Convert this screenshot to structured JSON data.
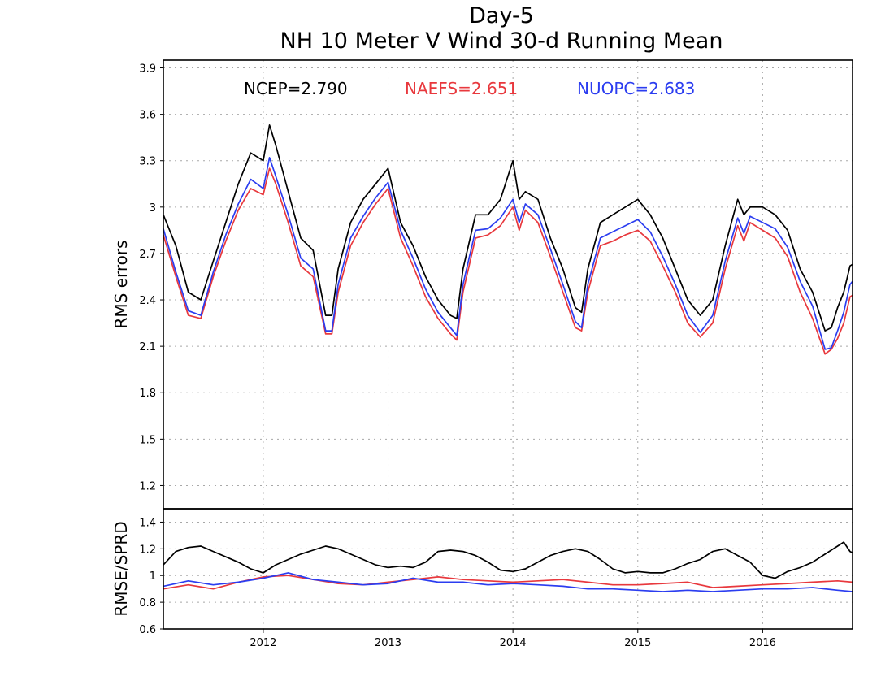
{
  "chart_data": [
    {
      "type": "line",
      "title": "Day-5",
      "subtitle": "NH 10 Meter V Wind 30-d Running Mean",
      "ylabel": "RMS errors",
      "xlabel": "",
      "xlim": [
        2011.2,
        2016.72
      ],
      "ylim": [
        1.05,
        3.95
      ],
      "yticks": [
        "1.2",
        "1.5",
        "1.8",
        "2.1",
        "2.4",
        "2.7",
        "3",
        "3.3",
        "3.6",
        "3.9"
      ],
      "grid": true,
      "legend_position": "top",
      "legend_entries": [
        {
          "label": "NCEP=2.790",
          "color": "#000000"
        },
        {
          "label": "NAEFS=2.651",
          "color": "#e8383d"
        },
        {
          "label": "NUOPC=2.683",
          "color": "#2b3df0"
        }
      ],
      "series": [
        {
          "name": "NCEP",
          "color": "#000000",
          "x": [
            2011.2,
            2011.3,
            2011.4,
            2011.5,
            2011.6,
            2011.7,
            2011.8,
            2011.9,
            2012.0,
            2012.05,
            2012.1,
            2012.2,
            2012.3,
            2012.4,
            2012.5,
            2012.55,
            2012.6,
            2012.7,
            2012.8,
            2012.9,
            2013.0,
            2013.1,
            2013.2,
            2013.3,
            2013.4,
            2013.5,
            2013.55,
            2013.6,
            2013.7,
            2013.8,
            2013.9,
            2014.0,
            2014.05,
            2014.1,
            2014.2,
            2014.3,
            2014.4,
            2014.5,
            2014.55,
            2014.6,
            2014.7,
            2014.8,
            2014.9,
            2015.0,
            2015.1,
            2015.2,
            2015.3,
            2015.4,
            2015.5,
            2015.6,
            2015.7,
            2015.8,
            2015.85,
            2015.9,
            2016.0,
            2016.1,
            2016.2,
            2016.3,
            2016.4,
            2016.5,
            2016.55,
            2016.6,
            2016.65,
            2016.7,
            2016.72
          ],
          "y": [
            2.95,
            2.75,
            2.45,
            2.4,
            2.65,
            2.9,
            3.15,
            3.35,
            3.3,
            3.53,
            3.4,
            3.1,
            2.8,
            2.72,
            2.3,
            2.3,
            2.6,
            2.9,
            3.05,
            3.15,
            3.25,
            2.9,
            2.75,
            2.55,
            2.4,
            2.3,
            2.28,
            2.6,
            2.95,
            2.95,
            3.05,
            3.3,
            3.05,
            3.1,
            3.05,
            2.8,
            2.6,
            2.35,
            2.32,
            2.6,
            2.9,
            2.95,
            3.0,
            3.05,
            2.95,
            2.8,
            2.6,
            2.4,
            2.3,
            2.4,
            2.75,
            3.05,
            2.95,
            3.0,
            3.0,
            2.95,
            2.85,
            2.6,
            2.45,
            2.2,
            2.22,
            2.35,
            2.45,
            2.62,
            2.63
          ]
        },
        {
          "name": "NAEFS",
          "color": "#e8383d",
          "x": [
            2011.2,
            2011.3,
            2011.4,
            2011.5,
            2011.6,
            2011.7,
            2011.8,
            2011.9,
            2012.0,
            2012.05,
            2012.1,
            2012.2,
            2012.3,
            2012.4,
            2012.5,
            2012.55,
            2012.6,
            2012.7,
            2012.8,
            2012.9,
            2013.0,
            2013.1,
            2013.2,
            2013.3,
            2013.4,
            2013.5,
            2013.55,
            2013.6,
            2013.7,
            2013.8,
            2013.9,
            2014.0,
            2014.05,
            2014.1,
            2014.2,
            2014.3,
            2014.4,
            2014.5,
            2014.55,
            2014.6,
            2014.7,
            2014.8,
            2014.9,
            2015.0,
            2015.1,
            2015.2,
            2015.3,
            2015.4,
            2015.5,
            2015.6,
            2015.7,
            2015.8,
            2015.85,
            2015.9,
            2016.0,
            2016.1,
            2016.2,
            2016.3,
            2016.4,
            2016.5,
            2016.55,
            2016.6,
            2016.65,
            2016.7,
            2016.72
          ],
          "y": [
            2.82,
            2.55,
            2.3,
            2.28,
            2.55,
            2.78,
            2.98,
            3.12,
            3.08,
            3.25,
            3.15,
            2.9,
            2.62,
            2.55,
            2.18,
            2.18,
            2.45,
            2.75,
            2.9,
            3.02,
            3.12,
            2.8,
            2.62,
            2.42,
            2.28,
            2.18,
            2.14,
            2.45,
            2.8,
            2.82,
            2.88,
            3.0,
            2.85,
            2.98,
            2.9,
            2.68,
            2.45,
            2.22,
            2.2,
            2.45,
            2.75,
            2.78,
            2.82,
            2.85,
            2.78,
            2.62,
            2.45,
            2.25,
            2.16,
            2.25,
            2.6,
            2.88,
            2.78,
            2.9,
            2.85,
            2.8,
            2.68,
            2.45,
            2.28,
            2.05,
            2.08,
            2.15,
            2.25,
            2.42,
            2.43
          ]
        },
        {
          "name": "NUOPC",
          "color": "#2b3df0",
          "x": [
            2011.2,
            2011.3,
            2011.4,
            2011.5,
            2011.6,
            2011.7,
            2011.8,
            2011.9,
            2012.0,
            2012.05,
            2012.1,
            2012.2,
            2012.3,
            2012.4,
            2012.5,
            2012.55,
            2012.6,
            2012.7,
            2012.8,
            2012.9,
            2013.0,
            2013.1,
            2013.2,
            2013.3,
            2013.4,
            2013.5,
            2013.55,
            2013.6,
            2013.7,
            2013.8,
            2013.9,
            2014.0,
            2014.05,
            2014.1,
            2014.2,
            2014.3,
            2014.4,
            2014.5,
            2014.55,
            2014.6,
            2014.7,
            2014.8,
            2014.9,
            2015.0,
            2015.1,
            2015.2,
            2015.3,
            2015.4,
            2015.5,
            2015.6,
            2015.7,
            2015.8,
            2015.85,
            2015.9,
            2016.0,
            2016.1,
            2016.2,
            2016.3,
            2016.4,
            2016.5,
            2016.55,
            2016.6,
            2016.65,
            2016.7,
            2016.72
          ],
          "y": [
            2.86,
            2.58,
            2.33,
            2.3,
            2.58,
            2.82,
            3.02,
            3.18,
            3.12,
            3.32,
            3.2,
            2.95,
            2.67,
            2.6,
            2.2,
            2.2,
            2.5,
            2.8,
            2.94,
            3.06,
            3.16,
            2.85,
            2.67,
            2.47,
            2.32,
            2.22,
            2.17,
            2.5,
            2.85,
            2.86,
            2.93,
            3.05,
            2.9,
            3.02,
            2.95,
            2.73,
            2.5,
            2.26,
            2.22,
            2.5,
            2.8,
            2.84,
            2.88,
            2.92,
            2.84,
            2.68,
            2.5,
            2.3,
            2.19,
            2.3,
            2.65,
            2.93,
            2.83,
            2.94,
            2.9,
            2.86,
            2.74,
            2.52,
            2.36,
            2.08,
            2.09,
            2.2,
            2.32,
            2.5,
            2.52
          ]
        }
      ]
    },
    {
      "type": "line",
      "ylabel": "RMSE/SPRD",
      "xlabel": "",
      "xlim": [
        2011.2,
        2016.72
      ],
      "ylim": [
        0.6,
        1.5
      ],
      "yticks": [
        "0.6",
        "0.8",
        "1",
        "1.2",
        "1.4"
      ],
      "xticks": [
        "2012",
        "2013",
        "2014",
        "2015",
        "2016"
      ],
      "grid": true,
      "series": [
        {
          "name": "NCEP",
          "color": "#000000",
          "x": [
            2011.2,
            2011.3,
            2011.4,
            2011.5,
            2011.6,
            2011.7,
            2011.8,
            2011.9,
            2012.0,
            2012.1,
            2012.2,
            2012.3,
            2012.4,
            2012.5,
            2012.6,
            2012.7,
            2012.8,
            2012.9,
            2013.0,
            2013.1,
            2013.2,
            2013.3,
            2013.4,
            2013.5,
            2013.6,
            2013.7,
            2013.8,
            2013.9,
            2014.0,
            2014.1,
            2014.2,
            2014.3,
            2014.4,
            2014.5,
            2014.6,
            2014.7,
            2014.8,
            2014.9,
            2015.0,
            2015.1,
            2015.2,
            2015.3,
            2015.4,
            2015.5,
            2015.6,
            2015.7,
            2015.8,
            2015.9,
            2016.0,
            2016.1,
            2016.2,
            2016.3,
            2016.4,
            2016.5,
            2016.6,
            2016.65,
            2016.7,
            2016.72
          ],
          "y": [
            1.08,
            1.18,
            1.21,
            1.22,
            1.18,
            1.14,
            1.1,
            1.05,
            1.02,
            1.08,
            1.12,
            1.16,
            1.19,
            1.22,
            1.2,
            1.16,
            1.12,
            1.08,
            1.06,
            1.07,
            1.06,
            1.1,
            1.18,
            1.19,
            1.18,
            1.15,
            1.1,
            1.04,
            1.03,
            1.05,
            1.1,
            1.15,
            1.18,
            1.2,
            1.18,
            1.12,
            1.05,
            1.02,
            1.03,
            1.02,
            1.02,
            1.05,
            1.09,
            1.12,
            1.18,
            1.2,
            1.15,
            1.1,
            1.0,
            0.98,
            1.03,
            1.06,
            1.1,
            1.16,
            1.22,
            1.25,
            1.18,
            1.17
          ]
        },
        {
          "name": "NAEFS",
          "color": "#e8383d",
          "x": [
            2011.2,
            2011.4,
            2011.6,
            2011.8,
            2012.0,
            2012.2,
            2012.4,
            2012.6,
            2012.8,
            2013.0,
            2013.2,
            2013.4,
            2013.6,
            2013.8,
            2014.0,
            2014.2,
            2014.4,
            2014.6,
            2014.8,
            2015.0,
            2015.2,
            2015.4,
            2015.6,
            2015.8,
            2016.0,
            2016.2,
            2016.4,
            2016.6,
            2016.72
          ],
          "y": [
            0.9,
            0.93,
            0.9,
            0.95,
            0.99,
            1.0,
            0.97,
            0.94,
            0.93,
            0.95,
            0.97,
            0.99,
            0.97,
            0.96,
            0.95,
            0.96,
            0.97,
            0.95,
            0.93,
            0.93,
            0.94,
            0.95,
            0.91,
            0.92,
            0.93,
            0.94,
            0.95,
            0.96,
            0.95
          ]
        },
        {
          "name": "NUOPC",
          "color": "#2b3df0",
          "x": [
            2011.2,
            2011.4,
            2011.6,
            2011.8,
            2012.0,
            2012.2,
            2012.4,
            2012.6,
            2012.8,
            2013.0,
            2013.2,
            2013.4,
            2013.6,
            2013.8,
            2014.0,
            2014.2,
            2014.4,
            2014.6,
            2014.8,
            2015.0,
            2015.2,
            2015.4,
            2015.6,
            2015.8,
            2016.0,
            2016.2,
            2016.4,
            2016.6,
            2016.72
          ],
          "y": [
            0.92,
            0.96,
            0.93,
            0.95,
            0.98,
            1.02,
            0.97,
            0.95,
            0.93,
            0.94,
            0.98,
            0.95,
            0.95,
            0.93,
            0.94,
            0.93,
            0.92,
            0.9,
            0.9,
            0.89,
            0.88,
            0.89,
            0.88,
            0.89,
            0.9,
            0.9,
            0.91,
            0.89,
            0.88
          ]
        }
      ]
    }
  ]
}
